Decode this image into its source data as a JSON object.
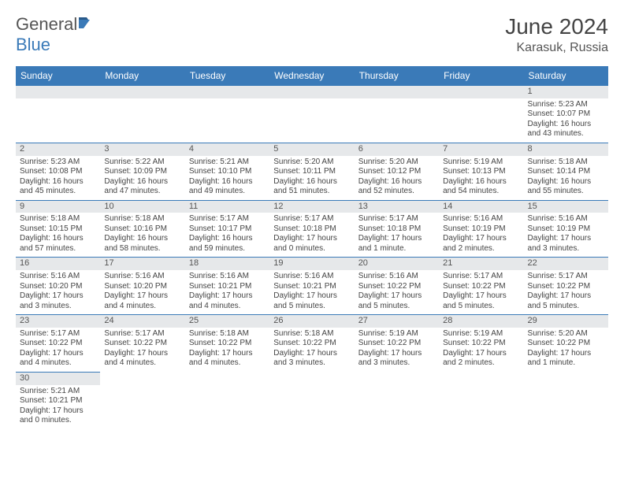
{
  "brand": {
    "part1": "General",
    "part2": "Blue"
  },
  "title": "June 2024",
  "location": "Karasuk, Russia",
  "colors": {
    "header_bg": "#3a7ab8",
    "header_fg": "#ffffff",
    "daynum_bg": "#e6e8ea",
    "border": "#3a7ab8",
    "text": "#444444"
  },
  "day_headers": [
    "Sunday",
    "Monday",
    "Tuesday",
    "Wednesday",
    "Thursday",
    "Friday",
    "Saturday"
  ],
  "weeks": [
    [
      null,
      null,
      null,
      null,
      null,
      null,
      {
        "n": "1",
        "sr": "Sunrise: 5:23 AM",
        "ss": "Sunset: 10:07 PM",
        "d1": "Daylight: 16 hours",
        "d2": "and 43 minutes."
      }
    ],
    [
      {
        "n": "2",
        "sr": "Sunrise: 5:23 AM",
        "ss": "Sunset: 10:08 PM",
        "d1": "Daylight: 16 hours",
        "d2": "and 45 minutes."
      },
      {
        "n": "3",
        "sr": "Sunrise: 5:22 AM",
        "ss": "Sunset: 10:09 PM",
        "d1": "Daylight: 16 hours",
        "d2": "and 47 minutes."
      },
      {
        "n": "4",
        "sr": "Sunrise: 5:21 AM",
        "ss": "Sunset: 10:10 PM",
        "d1": "Daylight: 16 hours",
        "d2": "and 49 minutes."
      },
      {
        "n": "5",
        "sr": "Sunrise: 5:20 AM",
        "ss": "Sunset: 10:11 PM",
        "d1": "Daylight: 16 hours",
        "d2": "and 51 minutes."
      },
      {
        "n": "6",
        "sr": "Sunrise: 5:20 AM",
        "ss": "Sunset: 10:12 PM",
        "d1": "Daylight: 16 hours",
        "d2": "and 52 minutes."
      },
      {
        "n": "7",
        "sr": "Sunrise: 5:19 AM",
        "ss": "Sunset: 10:13 PM",
        "d1": "Daylight: 16 hours",
        "d2": "and 54 minutes."
      },
      {
        "n": "8",
        "sr": "Sunrise: 5:18 AM",
        "ss": "Sunset: 10:14 PM",
        "d1": "Daylight: 16 hours",
        "d2": "and 55 minutes."
      }
    ],
    [
      {
        "n": "9",
        "sr": "Sunrise: 5:18 AM",
        "ss": "Sunset: 10:15 PM",
        "d1": "Daylight: 16 hours",
        "d2": "and 57 minutes."
      },
      {
        "n": "10",
        "sr": "Sunrise: 5:18 AM",
        "ss": "Sunset: 10:16 PM",
        "d1": "Daylight: 16 hours",
        "d2": "and 58 minutes."
      },
      {
        "n": "11",
        "sr": "Sunrise: 5:17 AM",
        "ss": "Sunset: 10:17 PM",
        "d1": "Daylight: 16 hours",
        "d2": "and 59 minutes."
      },
      {
        "n": "12",
        "sr": "Sunrise: 5:17 AM",
        "ss": "Sunset: 10:18 PM",
        "d1": "Daylight: 17 hours",
        "d2": "and 0 minutes."
      },
      {
        "n": "13",
        "sr": "Sunrise: 5:17 AM",
        "ss": "Sunset: 10:18 PM",
        "d1": "Daylight: 17 hours",
        "d2": "and 1 minute."
      },
      {
        "n": "14",
        "sr": "Sunrise: 5:16 AM",
        "ss": "Sunset: 10:19 PM",
        "d1": "Daylight: 17 hours",
        "d2": "and 2 minutes."
      },
      {
        "n": "15",
        "sr": "Sunrise: 5:16 AM",
        "ss": "Sunset: 10:19 PM",
        "d1": "Daylight: 17 hours",
        "d2": "and 3 minutes."
      }
    ],
    [
      {
        "n": "16",
        "sr": "Sunrise: 5:16 AM",
        "ss": "Sunset: 10:20 PM",
        "d1": "Daylight: 17 hours",
        "d2": "and 3 minutes."
      },
      {
        "n": "17",
        "sr": "Sunrise: 5:16 AM",
        "ss": "Sunset: 10:20 PM",
        "d1": "Daylight: 17 hours",
        "d2": "and 4 minutes."
      },
      {
        "n": "18",
        "sr": "Sunrise: 5:16 AM",
        "ss": "Sunset: 10:21 PM",
        "d1": "Daylight: 17 hours",
        "d2": "and 4 minutes."
      },
      {
        "n": "19",
        "sr": "Sunrise: 5:16 AM",
        "ss": "Sunset: 10:21 PM",
        "d1": "Daylight: 17 hours",
        "d2": "and 5 minutes."
      },
      {
        "n": "20",
        "sr": "Sunrise: 5:16 AM",
        "ss": "Sunset: 10:22 PM",
        "d1": "Daylight: 17 hours",
        "d2": "and 5 minutes."
      },
      {
        "n": "21",
        "sr": "Sunrise: 5:17 AM",
        "ss": "Sunset: 10:22 PM",
        "d1": "Daylight: 17 hours",
        "d2": "and 5 minutes."
      },
      {
        "n": "22",
        "sr": "Sunrise: 5:17 AM",
        "ss": "Sunset: 10:22 PM",
        "d1": "Daylight: 17 hours",
        "d2": "and 5 minutes."
      }
    ],
    [
      {
        "n": "23",
        "sr": "Sunrise: 5:17 AM",
        "ss": "Sunset: 10:22 PM",
        "d1": "Daylight: 17 hours",
        "d2": "and 4 minutes."
      },
      {
        "n": "24",
        "sr": "Sunrise: 5:17 AM",
        "ss": "Sunset: 10:22 PM",
        "d1": "Daylight: 17 hours",
        "d2": "and 4 minutes."
      },
      {
        "n": "25",
        "sr": "Sunrise: 5:18 AM",
        "ss": "Sunset: 10:22 PM",
        "d1": "Daylight: 17 hours",
        "d2": "and 4 minutes."
      },
      {
        "n": "26",
        "sr": "Sunrise: 5:18 AM",
        "ss": "Sunset: 10:22 PM",
        "d1": "Daylight: 17 hours",
        "d2": "and 3 minutes."
      },
      {
        "n": "27",
        "sr": "Sunrise: 5:19 AM",
        "ss": "Sunset: 10:22 PM",
        "d1": "Daylight: 17 hours",
        "d2": "and 3 minutes."
      },
      {
        "n": "28",
        "sr": "Sunrise: 5:19 AM",
        "ss": "Sunset: 10:22 PM",
        "d1": "Daylight: 17 hours",
        "d2": "and 2 minutes."
      },
      {
        "n": "29",
        "sr": "Sunrise: 5:20 AM",
        "ss": "Sunset: 10:22 PM",
        "d1": "Daylight: 17 hours",
        "d2": "and 1 minute."
      }
    ],
    [
      {
        "n": "30",
        "sr": "Sunrise: 5:21 AM",
        "ss": "Sunset: 10:21 PM",
        "d1": "Daylight: 17 hours",
        "d2": "and 0 minutes."
      },
      null,
      null,
      null,
      null,
      null,
      null
    ]
  ]
}
